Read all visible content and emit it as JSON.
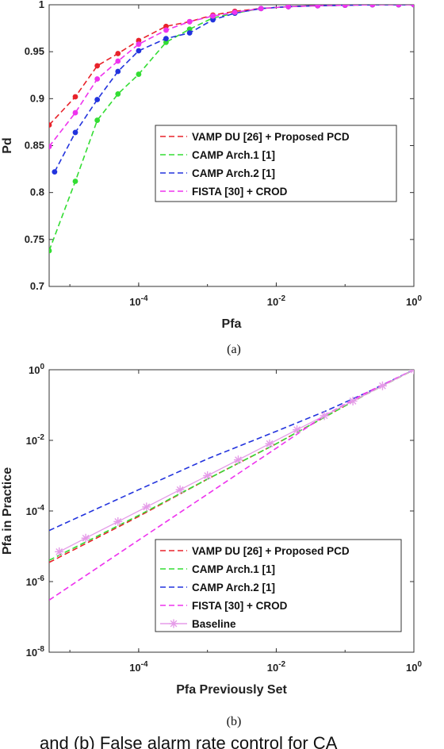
{
  "chart_data": [
    {
      "type": "line",
      "caption": "(a)",
      "xlabel": "Pfa",
      "ylabel": "Pd",
      "xscale": "log",
      "xlim": [
        5e-06,
        1
      ],
      "ylim": [
        0.7,
        1
      ],
      "x_ticks": [
        0.0001,
        0.01,
        1
      ],
      "x_tick_labels": [
        {
          "base": "10",
          "exp": "-4"
        },
        {
          "base": "10",
          "exp": "-2"
        },
        {
          "base": "10",
          "exp": "0"
        }
      ],
      "y_ticks": [
        0.7,
        0.75,
        0.8,
        0.85,
        0.9,
        0.95,
        1
      ],
      "y_tick_labels": [
        "0.7",
        "0.75",
        "0.8",
        "0.85",
        "0.9",
        "0.95",
        "1"
      ],
      "grid": false,
      "legend_position": "middle-right",
      "series": [
        {
          "name": "VAMP DU [26] + Proposed PCD",
          "color": "#e8222a",
          "style": "dashed",
          "marker": "dot",
          "x": [
            5e-06,
            1.2e-05,
            2.5e-05,
            5e-05,
            0.0001,
            0.00025,
            0.00055,
            0.0012,
            0.0025,
            0.006,
            0.015,
            0.04,
            0.1,
            0.25,
            0.6,
            1
          ],
          "y": [
            0.872,
            0.902,
            0.935,
            0.948,
            0.962,
            0.977,
            0.982,
            0.989,
            0.993,
            0.996,
            0.998,
            0.999,
            0.9995,
            1.0,
            1.0,
            1.0
          ]
        },
        {
          "name": "CAMP Arch.1 [1]",
          "color": "#33dd33",
          "style": "dashed",
          "marker": "dot",
          "x": [
            5e-06,
            1.2e-05,
            2.5e-05,
            5e-05,
            0.0001,
            0.00025,
            0.00055,
            0.0012,
            0.0025,
            0.006,
            0.015,
            0.04,
            0.1,
            0.25,
            0.6,
            1
          ],
          "y": [
            0.738,
            0.812,
            0.877,
            0.905,
            0.926,
            0.96,
            0.974,
            0.986,
            0.991,
            0.996,
            0.998,
            0.999,
            0.9995,
            1.0,
            1.0,
            1.0
          ]
        },
        {
          "name": "CAMP Arch.2 [1]",
          "color": "#2233dd",
          "style": "dashed",
          "marker": "dot",
          "x": [
            6e-06,
            1.2e-05,
            2.5e-05,
            5e-05,
            0.0001,
            0.00025,
            0.00055,
            0.0012,
            0.0025,
            0.006,
            0.015,
            0.04,
            0.1,
            0.25,
            0.6,
            1
          ],
          "y": [
            0.822,
            0.864,
            0.899,
            0.929,
            0.951,
            0.964,
            0.97,
            0.984,
            0.991,
            0.996,
            0.998,
            0.999,
            0.9995,
            1.0,
            1.0,
            1.0
          ]
        },
        {
          "name": "FISTA [30] + CROD",
          "color": "#ee33ee",
          "style": "dashed",
          "marker": "dot",
          "x": [
            5e-06,
            1.2e-05,
            2.5e-05,
            5e-05,
            0.0001,
            0.00025,
            0.00055,
            0.0012,
            0.0025,
            0.006,
            0.015,
            0.04,
            0.1,
            0.25,
            0.6,
            1
          ],
          "y": [
            0.849,
            0.885,
            0.921,
            0.94,
            0.958,
            0.973,
            0.982,
            0.988,
            0.992,
            0.996,
            0.998,
            0.999,
            0.9995,
            1.0,
            1.0,
            1.0
          ]
        }
      ]
    },
    {
      "type": "line",
      "caption": "(b)",
      "xlabel": "Pfa Previously Set",
      "ylabel": "Pfa in Practice",
      "xscale": "log",
      "yscale": "log",
      "xlim": [
        5e-06,
        1
      ],
      "ylim": [
        1e-08,
        1
      ],
      "x_ticks": [
        0.0001,
        0.01,
        1
      ],
      "x_tick_labels": [
        {
          "base": "10",
          "exp": "-4"
        },
        {
          "base": "10",
          "exp": "-2"
        },
        {
          "base": "10",
          "exp": "0"
        }
      ],
      "y_ticks": [
        1e-08,
        1e-06,
        0.0001,
        0.01,
        1
      ],
      "y_tick_labels": [
        {
          "base": "10",
          "exp": "-8"
        },
        {
          "base": "10",
          "exp": "-6"
        },
        {
          "base": "10",
          "exp": "-4"
        },
        {
          "base": "10",
          "exp": "-2"
        },
        {
          "base": "10",
          "exp": "0"
        }
      ],
      "grid": false,
      "legend_position": "bottom-right",
      "series": [
        {
          "name": "VAMP DU [26] + Proposed PCD",
          "color": "#e8222a",
          "style": "dashed",
          "marker": "none",
          "x": [
            5e-06,
            0.0001,
            0.001,
            0.01,
            0.05,
            0.2,
            1
          ],
          "y": [
            3.5e-06,
            7e-05,
            0.0008,
            0.008,
            0.045,
            0.2,
            1
          ]
        },
        {
          "name": "CAMP Arch.1 [1]",
          "color": "#33dd33",
          "style": "dashed",
          "marker": "none",
          "x": [
            5e-06,
            0.0001,
            0.001,
            0.01,
            0.05,
            0.2,
            1
          ],
          "y": [
            4e-06,
            7.5e-05,
            0.0008,
            0.008,
            0.045,
            0.2,
            1
          ]
        },
        {
          "name": "CAMP Arch.2 [1]",
          "color": "#2233dd",
          "style": "dashed",
          "marker": "none",
          "x": [
            5e-06,
            0.0001,
            0.001,
            0.01,
            0.05,
            0.2,
            1
          ],
          "y": [
            2.8e-05,
            0.0004,
            0.003,
            0.018,
            0.065,
            0.22,
            1
          ]
        },
        {
          "name": "FISTA [30] + CROD",
          "color": "#ee33ee",
          "style": "dashed",
          "marker": "none",
          "x": [
            5e-06,
            0.0001,
            0.001,
            0.01,
            0.05,
            0.2,
            1
          ],
          "y": [
            3e-07,
            1.5e-05,
            0.0003,
            0.006,
            0.05,
            0.22,
            1
          ]
        },
        {
          "name": "Baseline",
          "color": "#e59be8",
          "style": "solid",
          "marker": "asterisk",
          "x": [
            7e-06,
            1.7e-05,
            5e-05,
            0.00013,
            0.0004,
            0.001,
            0.0028,
            0.008,
            0.02,
            0.05,
            0.13,
            0.35,
            1
          ],
          "y": [
            7e-06,
            1.7e-05,
            5e-05,
            0.00013,
            0.0004,
            0.001,
            0.0028,
            0.008,
            0.02,
            0.05,
            0.13,
            0.35,
            1
          ]
        }
      ]
    }
  ],
  "bottom_text": "and (b) False alarm rate control for CA"
}
